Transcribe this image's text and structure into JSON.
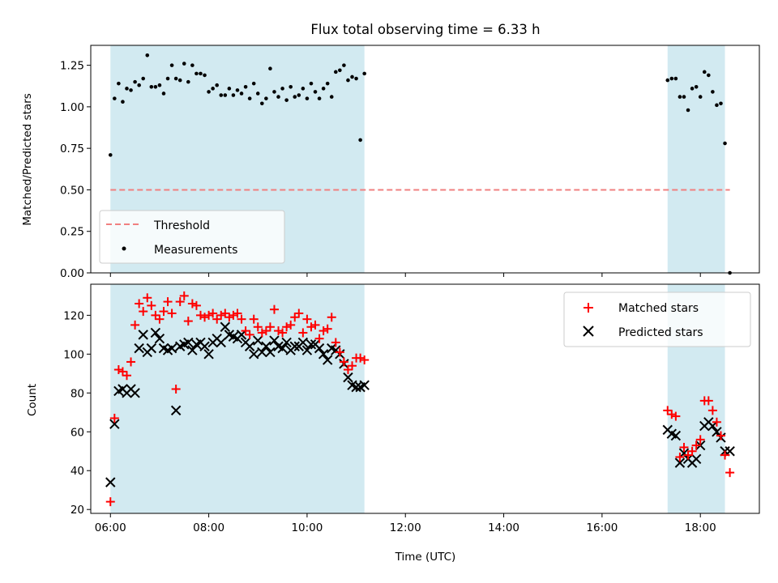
{
  "chart_data": [
    {
      "type": "scatter",
      "title": "Flux total observing time = 6.33 h",
      "xlabel": "",
      "ylabel": "Matched/Predicted stars",
      "xlim": [
        "05:36",
        "19:12"
      ],
      "ylim": [
        0,
        1.37
      ],
      "yticks": [
        "0.00",
        "0.25",
        "0.50",
        "0.75",
        "1.00",
        "1.25"
      ],
      "xticks_values": [
        "06:00",
        "08:00",
        "10:00",
        "12:00",
        "14:00",
        "16:00",
        "18:00"
      ],
      "shaded_intervals": [
        [
          "06:00",
          "11:10"
        ],
        [
          "17:20",
          "18:30"
        ]
      ],
      "shade_color": "#add8e6",
      "legend_position": "lower-left",
      "threshold": {
        "name": "Threshold",
        "value": 0.5,
        "x_range": [
          "06:00",
          "18:36"
        ],
        "color": "#f08080"
      },
      "series": [
        {
          "name": "Measurements",
          "color": "#000000",
          "x": [
            "06:00",
            "06:05",
            "06:10",
            "06:15",
            "06:20",
            "06:25",
            "06:30",
            "06:35",
            "06:40",
            "06:45",
            "06:50",
            "06:55",
            "07:00",
            "07:05",
            "07:10",
            "07:15",
            "07:20",
            "07:25",
            "07:30",
            "07:35",
            "07:40",
            "07:45",
            "07:50",
            "07:55",
            "08:00",
            "08:05",
            "08:10",
            "08:15",
            "08:20",
            "08:25",
            "08:30",
            "08:35",
            "08:40",
            "08:45",
            "08:50",
            "08:55",
            "09:00",
            "09:05",
            "09:10",
            "09:15",
            "09:20",
            "09:25",
            "09:30",
            "09:35",
            "09:40",
            "09:45",
            "09:50",
            "09:55",
            "10:00",
            "10:05",
            "10:10",
            "10:15",
            "10:20",
            "10:25",
            "10:30",
            "10:35",
            "10:40",
            "10:45",
            "10:50",
            "10:55",
            "11:00",
            "11:05",
            "11:10",
            "17:20",
            "17:25",
            "17:30",
            "17:35",
            "17:40",
            "17:45",
            "17:50",
            "17:55",
            "18:00",
            "18:05",
            "18:10",
            "18:15",
            "18:20",
            "18:25",
            "18:30",
            "18:36"
          ],
          "values": [
            0.71,
            1.05,
            1.14,
            1.03,
            1.11,
            1.1,
            1.15,
            1.13,
            1.17,
            1.31,
            1.12,
            1.12,
            1.13,
            1.08,
            1.17,
            1.25,
            1.17,
            1.16,
            1.26,
            1.15,
            1.25,
            1.2,
            1.2,
            1.19,
            1.09,
            1.11,
            1.13,
            1.07,
            1.07,
            1.11,
            1.07,
            1.1,
            1.08,
            1.12,
            1.05,
            1.14,
            1.08,
            1.02,
            1.05,
            1.23,
            1.09,
            1.06,
            1.11,
            1.04,
            1.12,
            1.06,
            1.07,
            1.11,
            1.05,
            1.14,
            1.09,
            1.05,
            1.11,
            1.14,
            1.06,
            1.21,
            1.22,
            1.25,
            1.16,
            1.18,
            1.17,
            0.8,
            1.2,
            1.16,
            1.17,
            1.17,
            1.06,
            1.06,
            0.98,
            1.11,
            1.12,
            1.06,
            1.21,
            1.19,
            1.09,
            1.01,
            1.02,
            0.78,
            0.0
          ]
        }
      ]
    },
    {
      "type": "scatter",
      "title": "",
      "xlabel": "Time (UTC)",
      "ylabel": "Count",
      "xlim": [
        "05:36",
        "19:12"
      ],
      "ylim": [
        18,
        136
      ],
      "yticks": [
        "20",
        "40",
        "60",
        "80",
        "100",
        "120"
      ],
      "xticks": [
        "06:00",
        "08:00",
        "10:00",
        "12:00",
        "14:00",
        "16:00",
        "18:00"
      ],
      "shaded_intervals": [
        [
          "06:00",
          "11:10"
        ],
        [
          "17:20",
          "18:30"
        ]
      ],
      "shade_color": "#add8e6",
      "legend_position": "top-right",
      "series": [
        {
          "name": "Matched stars",
          "marker": "+",
          "color": "#ff0000",
          "x": [
            "06:00",
            "06:05",
            "06:10",
            "06:15",
            "06:20",
            "06:25",
            "06:30",
            "06:35",
            "06:40",
            "06:45",
            "06:50",
            "06:55",
            "07:00",
            "07:05",
            "07:10",
            "07:15",
            "07:20",
            "07:25",
            "07:30",
            "07:35",
            "07:40",
            "07:45",
            "07:50",
            "07:55",
            "08:00",
            "08:05",
            "08:10",
            "08:15",
            "08:20",
            "08:25",
            "08:30",
            "08:35",
            "08:40",
            "08:45",
            "08:50",
            "08:55",
            "09:00",
            "09:05",
            "09:10",
            "09:15",
            "09:20",
            "09:25",
            "09:30",
            "09:35",
            "09:40",
            "09:45",
            "09:50",
            "09:55",
            "10:00",
            "10:05",
            "10:10",
            "10:15",
            "10:20",
            "10:25",
            "10:30",
            "10:35",
            "10:40",
            "10:45",
            "10:50",
            "10:55",
            "11:00",
            "11:05",
            "11:10",
            "17:20",
            "17:25",
            "17:30",
            "17:35",
            "17:40",
            "17:45",
            "17:50",
            "17:55",
            "18:00",
            "18:05",
            "18:10",
            "18:15",
            "18:20",
            "18:25",
            "18:30",
            "18:36"
          ],
          "values": [
            24,
            67,
            92,
            91,
            89,
            96,
            115,
            126,
            122,
            129,
            125,
            120,
            118,
            122,
            127,
            121,
            82,
            127,
            130,
            117,
            126,
            125,
            120,
            119,
            120,
            121,
            118,
            120,
            121,
            119,
            120,
            121,
            118,
            112,
            110,
            118,
            114,
            111,
            112,
            114,
            123,
            112,
            111,
            114,
            115,
            119,
            121,
            111,
            118,
            114,
            115,
            108,
            112,
            113,
            119,
            106,
            101,
            96,
            92,
            94,
            98,
            98,
            97,
            71,
            69,
            68,
            47,
            52,
            48,
            50,
            53,
            56,
            76,
            76,
            71,
            65,
            58,
            48,
            39
          ]
        },
        {
          "name": "Predicted stars",
          "marker": "x",
          "color": "#000000",
          "x": [
            "06:00",
            "06:05",
            "06:10",
            "06:15",
            "06:20",
            "06:25",
            "06:30",
            "06:35",
            "06:40",
            "06:45",
            "06:50",
            "06:55",
            "07:00",
            "07:05",
            "07:10",
            "07:15",
            "07:20",
            "07:25",
            "07:30",
            "07:35",
            "07:40",
            "07:45",
            "07:50",
            "07:55",
            "08:00",
            "08:05",
            "08:10",
            "08:15",
            "08:20",
            "08:25",
            "08:30",
            "08:35",
            "08:40",
            "08:45",
            "08:50",
            "08:55",
            "09:00",
            "09:05",
            "09:10",
            "09:15",
            "09:20",
            "09:25",
            "09:30",
            "09:35",
            "09:40",
            "09:45",
            "09:50",
            "09:55",
            "10:00",
            "10:05",
            "10:10",
            "10:15",
            "10:20",
            "10:25",
            "10:30",
            "10:35",
            "10:40",
            "10:45",
            "10:50",
            "10:55",
            "11:00",
            "11:05",
            "11:10",
            "17:20",
            "17:25",
            "17:30",
            "17:35",
            "17:40",
            "17:45",
            "17:50",
            "17:55",
            "18:00",
            "18:05",
            "18:10",
            "18:15",
            "18:20",
            "18:25",
            "18:30",
            "18:36"
          ],
          "values": [
            34,
            64,
            81,
            82,
            80,
            82,
            80,
            103,
            110,
            101,
            103,
            111,
            108,
            103,
            102,
            103,
            71,
            104,
            105,
            106,
            102,
            105,
            106,
            104,
            100,
            106,
            108,
            106,
            114,
            110,
            109,
            108,
            110,
            106,
            104,
            100,
            107,
            101,
            104,
            101,
            107,
            104,
            103,
            106,
            102,
            104,
            104,
            106,
            102,
            105,
            105,
            103,
            100,
            97,
            103,
            102,
            100,
            95,
            88,
            84,
            83,
            83,
            84,
            61,
            59,
            58,
            44,
            49,
            46,
            44,
            46,
            53,
            63,
            65,
            63,
            60,
            57,
            50,
            50
          ]
        }
      ]
    }
  ]
}
